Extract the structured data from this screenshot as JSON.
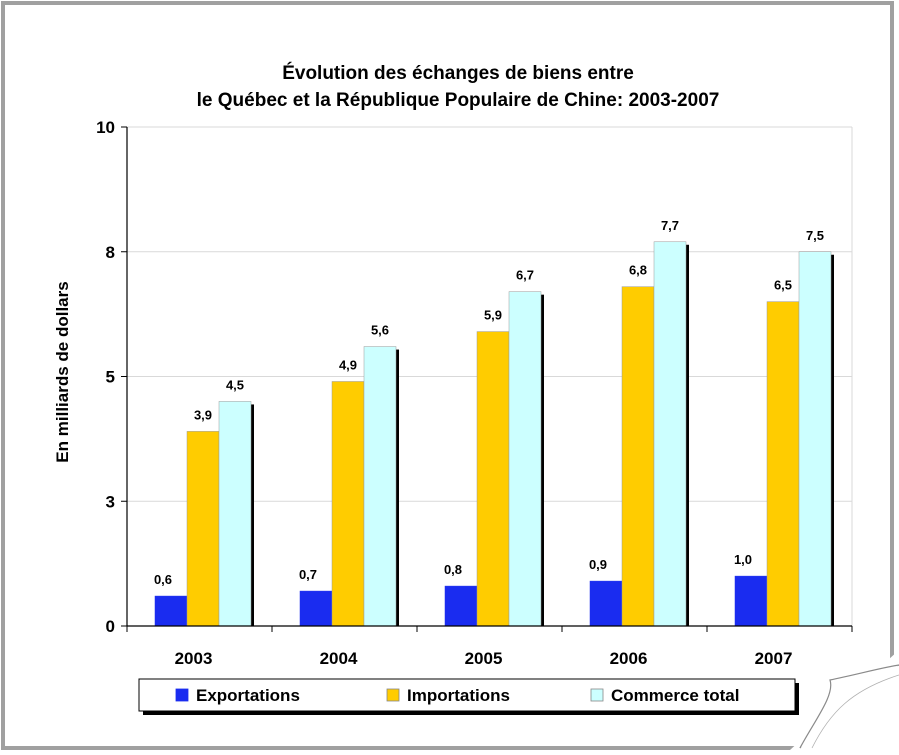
{
  "chart_data": {
    "type": "bar",
    "title_line1": "Évolution des échanges de biens entre",
    "title_line2": "le Québec et la République Populaire de Chine: 2003-2007",
    "xlabel": "",
    "ylabel": "En milliards de dollars",
    "ylim": [
      0,
      10
    ],
    "yticks": [
      "0",
      "3",
      "5",
      "8",
      "10"
    ],
    "ytick_values": [
      0,
      2.5,
      5,
      7.5,
      10
    ],
    "categories": [
      "2003",
      "2004",
      "2005",
      "2006",
      "2007"
    ],
    "series": [
      {
        "name": "Exportations",
        "color": "#1a2cf0",
        "values": [
          0.6,
          0.7,
          0.8,
          0.9,
          1.0
        ],
        "labels": [
          "0,6",
          "0,7",
          "0,8",
          "0,9",
          "1,0"
        ]
      },
      {
        "name": "Importations",
        "color": "#ffcc00",
        "values": [
          3.9,
          4.9,
          5.9,
          6.8,
          6.5
        ],
        "labels": [
          "3,9",
          "4,9",
          "5,9",
          "6,8",
          "6,5"
        ]
      },
      {
        "name": "Commerce total",
        "color": "#ccffff",
        "values": [
          4.5,
          5.6,
          6.7,
          7.7,
          7.5
        ],
        "labels": [
          "4,5",
          "5,6",
          "6,7",
          "7,7",
          "7,5"
        ]
      }
    ],
    "grid": true,
    "legend_position": "bottom"
  }
}
